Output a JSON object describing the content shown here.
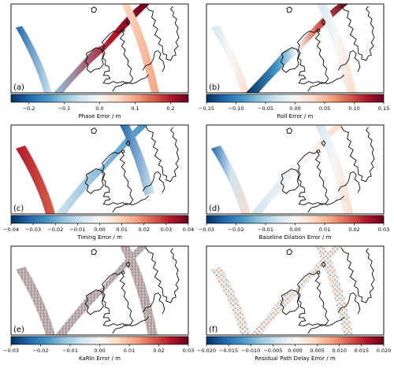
{
  "figure": {
    "panels": [
      {
        "letter": "(a)",
        "colorbar_label": "Phase Error / m",
        "ticks": [
          "−0.2",
          "−0.1",
          "0.0",
          "0.1",
          "0.2"
        ],
        "tick_values": [
          -0.2,
          -0.1,
          0.0,
          0.1,
          0.2
        ],
        "vmin": -0.25,
        "vmax": 0.25,
        "colormap": "RdBu_r"
      },
      {
        "letter": "(b)",
        "colorbar_label": "Roll Error / m",
        "ticks": [
          "−0.15",
          "−0.10",
          "−0.05",
          "0.00",
          "0.05",
          "0.10",
          "0.15"
        ],
        "tick_values": [
          -0.15,
          -0.1,
          -0.05,
          0.0,
          0.05,
          0.1,
          0.15
        ],
        "vmin": -0.15,
        "vmax": 0.15,
        "colormap": "RdBu_r"
      },
      {
        "letter": "(c)",
        "colorbar_label": "Timing Error / m",
        "ticks": [
          "−0.04",
          "−0.03",
          "−0.02",
          "−0.01",
          "0.00",
          "0.01",
          "0.02",
          "0.03",
          "0.04"
        ],
        "tick_values": [
          -0.04,
          -0.03,
          -0.02,
          -0.01,
          0.0,
          0.01,
          0.02,
          0.03,
          0.04
        ],
        "vmin": -0.04,
        "vmax": 0.04,
        "colormap": "RdBu_r"
      },
      {
        "letter": "(d)",
        "colorbar_label": "Baseline Dilation Error / m",
        "ticks": [
          "−0.03",
          "−0.02",
          "−0.01",
          "0.00",
          "0.01",
          "0.02",
          "0.03"
        ],
        "tick_values": [
          -0.03,
          -0.02,
          -0.01,
          0.0,
          0.01,
          0.02,
          0.03
        ],
        "vmin": -0.03,
        "vmax": 0.03,
        "colormap": "RdBu_r"
      },
      {
        "letter": "(e)",
        "colorbar_label": "KaRIn Error / m",
        "ticks": [
          "−0.03",
          "−0.02",
          "−0.01",
          "0.00",
          "0.01",
          "0.02",
          "0.03"
        ],
        "tick_values": [
          -0.03,
          -0.02,
          -0.01,
          0.0,
          0.01,
          0.02,
          0.03
        ],
        "vmin": -0.03,
        "vmax": 0.03,
        "colormap": "RdBu_r"
      },
      {
        "letter": "(f)",
        "colorbar_label": "Residual Path Delay Error / m",
        "ticks": [
          "−0.020",
          "−0.015",
          "−0.010",
          "−0.005",
          "0.000",
          "0.005",
          "0.010",
          "0.015",
          "0.020"
        ],
        "tick_values": [
          -0.02,
          -0.015,
          -0.01,
          -0.005,
          0.0,
          0.005,
          0.01,
          0.015,
          0.02
        ],
        "vmin": -0.02,
        "vmax": 0.02,
        "colormap": "RdBu_r"
      }
    ],
    "colors": {
      "cmap_low": "#053061",
      "cmap_mid": "#f7f7f7",
      "cmap_high": "#67001f",
      "coastline": "#000000",
      "frame": "#000000"
    }
  }
}
